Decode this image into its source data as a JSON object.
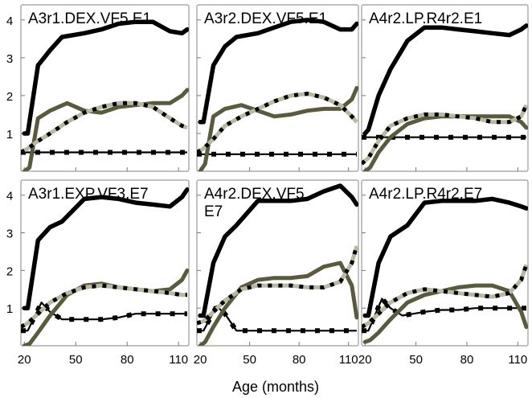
{
  "figure": {
    "xlabel": "Age (months)"
  },
  "chart_data": {
    "type": "line",
    "xlabel": "Age (months)",
    "xlim": [
      18,
      116
    ],
    "ylim": [
      0,
      4.4
    ],
    "xticks": [
      20,
      50,
      80,
      110
    ],
    "yticks": [
      1,
      2,
      3,
      4
    ],
    "grid": false,
    "series_styles": [
      {
        "key": "black_thick",
        "color": "#000000",
        "dash": "none"
      },
      {
        "key": "gray_dashed",
        "color": "#b8b9a0",
        "dash": "alternating-black"
      },
      {
        "key": "olive",
        "color": "#5a5a3c",
        "dash": "none"
      },
      {
        "key": "black_thin_markers",
        "color": "#000000",
        "dash": "square-markers"
      }
    ],
    "panels": [
      {
        "title": "A3r1.DEX.VF5.E1",
        "series": [
          {
            "style": "black_thick",
            "x": [
              20,
              22,
              28,
              35,
              42,
              55,
              65,
              75,
              85,
              95,
              105,
              112,
              115
            ],
            "y": [
              1.0,
              1.0,
              2.8,
              3.2,
              3.55,
              3.65,
              3.75,
              3.9,
              3.95,
              3.95,
              3.7,
              3.65,
              3.75
            ]
          },
          {
            "style": "gray_dashed",
            "x": [
              18,
              22,
              28,
              35,
              45,
              55,
              65,
              75,
              85,
              95,
              105,
              112,
              115
            ],
            "y": [
              0.5,
              0.6,
              0.8,
              1.0,
              1.3,
              1.55,
              1.7,
              1.8,
              1.8,
              1.7,
              1.4,
              1.2,
              1.15
            ]
          },
          {
            "style": "olive",
            "x": [
              20,
              23,
              28,
              35,
              45,
              55,
              65,
              75,
              85,
              95,
              105,
              112,
              115
            ],
            "y": [
              0.0,
              0.1,
              1.4,
              1.6,
              1.8,
              1.6,
              1.55,
              1.7,
              1.75,
              1.8,
              1.8,
              2.0,
              2.15
            ]
          },
          {
            "style": "black_thin_markers",
            "x": [
              18,
              25,
              35,
              45,
              55,
              65,
              75,
              85,
              95,
              105,
              115
            ],
            "y": [
              0.5,
              0.5,
              0.5,
              0.5,
              0.5,
              0.5,
              0.5,
              0.5,
              0.5,
              0.5,
              0.5
            ]
          }
        ]
      },
      {
        "title": "A3r2.DEX.VF5.E1",
        "series": [
          {
            "style": "black_thick",
            "x": [
              20,
              22,
              28,
              35,
              42,
              55,
              65,
              75,
              85,
              95,
              105,
              112,
              115
            ],
            "y": [
              1.3,
              1.3,
              2.8,
              3.3,
              3.55,
              3.65,
              3.8,
              3.95,
              4.0,
              3.95,
              3.75,
              3.75,
              3.9
            ]
          },
          {
            "style": "gray_dashed",
            "x": [
              18,
              22,
              28,
              35,
              45,
              55,
              65,
              75,
              85,
              95,
              105,
              112,
              115
            ],
            "y": [
              0.5,
              0.6,
              0.85,
              1.2,
              1.45,
              1.65,
              1.85,
              2.0,
              2.05,
              1.95,
              1.75,
              1.45,
              1.3
            ]
          },
          {
            "style": "olive",
            "x": [
              20,
              23,
              28,
              35,
              45,
              55,
              65,
              75,
              85,
              95,
              105,
              112,
              115
            ],
            "y": [
              0.0,
              0.2,
              1.45,
              1.65,
              1.75,
              1.6,
              1.45,
              1.5,
              1.6,
              1.65,
              1.65,
              1.9,
              2.2
            ]
          },
          {
            "style": "black_thin_markers",
            "x": [
              18,
              25,
              35,
              45,
              55,
              65,
              75,
              85,
              95,
              105,
              115
            ],
            "y": [
              0.45,
              0.45,
              0.45,
              0.45,
              0.45,
              0.45,
              0.45,
              0.45,
              0.45,
              0.45,
              0.45
            ]
          }
        ]
      },
      {
        "title": "A4r2.LP.R4r2.E1",
        "series": [
          {
            "style": "black_thick",
            "x": [
              20,
              22,
              28,
              35,
              45,
              55,
              65,
              75,
              85,
              95,
              105,
              112,
              115
            ],
            "y": [
              1.0,
              1.1,
              2.0,
              2.7,
              3.45,
              3.8,
              3.8,
              3.75,
              3.7,
              3.65,
              3.6,
              3.75,
              3.85
            ]
          },
          {
            "style": "gray_dashed",
            "x": [
              18,
              22,
              28,
              35,
              45,
              55,
              65,
              75,
              85,
              95,
              105,
              112,
              115
            ],
            "y": [
              0.2,
              0.35,
              0.8,
              1.2,
              1.4,
              1.5,
              1.5,
              1.45,
              1.4,
              1.3,
              1.3,
              1.45,
              1.75
            ]
          },
          {
            "style": "olive",
            "x": [
              20,
              23,
              28,
              35,
              45,
              55,
              65,
              75,
              85,
              95,
              105,
              112,
              115
            ],
            "y": [
              0.0,
              0.1,
              0.5,
              0.9,
              1.25,
              1.4,
              1.45,
              1.45,
              1.45,
              1.45,
              1.45,
              1.3,
              1.15
            ]
          },
          {
            "style": "black_thin_markers",
            "x": [
              18,
              25,
              35,
              45,
              55,
              65,
              75,
              85,
              95,
              105,
              115
            ],
            "y": [
              0.9,
              0.9,
              0.9,
              0.9,
              0.9,
              0.9,
              0.9,
              0.9,
              0.9,
              0.9,
              0.9
            ]
          }
        ]
      },
      {
        "title": "A3r1.EXP.VF3.E7",
        "series": [
          {
            "style": "black_thick",
            "x": [
              20,
              22,
              28,
              35,
              42,
              55,
              65,
              75,
              85,
              95,
              105,
              112,
              115
            ],
            "y": [
              1.0,
              1.0,
              2.8,
              3.15,
              3.3,
              3.9,
              3.95,
              3.9,
              3.8,
              3.75,
              3.7,
              3.95,
              4.15
            ]
          },
          {
            "style": "gray_dashed",
            "x": [
              18,
              22,
              28,
              35,
              45,
              55,
              65,
              75,
              85,
              95,
              105,
              112,
              115
            ],
            "y": [
              0.5,
              0.6,
              0.85,
              1.15,
              1.4,
              1.55,
              1.6,
              1.55,
              1.5,
              1.45,
              1.4,
              1.35,
              1.35
            ]
          },
          {
            "style": "olive",
            "x": [
              20,
              23,
              28,
              35,
              45,
              55,
              65,
              75,
              85,
              95,
              105,
              112,
              115
            ],
            "y": [
              0.0,
              0.05,
              0.35,
              0.8,
              1.35,
              1.6,
              1.65,
              1.55,
              1.5,
              1.45,
              1.5,
              1.75,
              2.0
            ]
          },
          {
            "style": "black_thin_markers",
            "x": [
              18,
              22,
              30,
              35,
              42,
              55,
              65,
              75,
              85,
              95,
              105,
              115
            ],
            "y": [
              0.4,
              0.4,
              1.15,
              0.9,
              0.7,
              0.7,
              0.7,
              0.75,
              0.85,
              0.85,
              0.85,
              0.85
            ]
          }
        ]
      },
      {
        "title": "A4r2.DEX.VF5.",
        "title2": "E7",
        "series": [
          {
            "style": "black_thick",
            "x": [
              20,
              22,
              28,
              35,
              42,
              55,
              65,
              75,
              85,
              95,
              105,
              112,
              115
            ],
            "y": [
              0.8,
              0.8,
              2.2,
              2.9,
              3.2,
              3.85,
              3.85,
              3.85,
              3.9,
              4.1,
              4.25,
              3.95,
              3.75
            ]
          },
          {
            "style": "gray_dashed",
            "x": [
              18,
              22,
              28,
              35,
              45,
              55,
              65,
              75,
              85,
              95,
              105,
              112,
              115
            ],
            "y": [
              0.6,
              0.65,
              0.9,
              1.2,
              1.5,
              1.6,
              1.6,
              1.6,
              1.55,
              1.55,
              1.7,
              2.2,
              2.65
            ]
          },
          {
            "style": "olive",
            "x": [
              20,
              23,
              28,
              35,
              45,
              55,
              65,
              75,
              85,
              95,
              105,
              112,
              115
            ],
            "y": [
              0.0,
              0.1,
              0.5,
              1.0,
              1.55,
              1.75,
              1.8,
              1.8,
              1.85,
              2.1,
              2.2,
              1.6,
              0.75
            ]
          },
          {
            "style": "black_thin_markers",
            "x": [
              18,
              22,
              30,
              35,
              42,
              55,
              65,
              75,
              85,
              95,
              105,
              115
            ],
            "y": [
              0.4,
              0.4,
              1.05,
              0.85,
              0.4,
              0.4,
              0.4,
              0.4,
              0.4,
              0.4,
              0.4,
              0.4
            ]
          }
        ]
      },
      {
        "title": "A4r2.LP.R4r2.E7",
        "series": [
          {
            "style": "black_thick",
            "x": [
              20,
              22,
              28,
              35,
              45,
              55,
              65,
              75,
              85,
              95,
              105,
              112,
              115
            ],
            "y": [
              0.8,
              0.8,
              2.2,
              2.9,
              3.2,
              3.8,
              3.85,
              3.85,
              3.85,
              3.9,
              3.8,
              3.7,
              3.65
            ]
          },
          {
            "style": "gray_dashed",
            "x": [
              18,
              22,
              28,
              35,
              45,
              55,
              65,
              75,
              85,
              95,
              105,
              112,
              115
            ],
            "y": [
              0.5,
              0.6,
              0.85,
              1.15,
              1.4,
              1.5,
              1.45,
              1.4,
              1.35,
              1.3,
              1.4,
              1.75,
              2.15
            ]
          },
          {
            "style": "olive",
            "x": [
              20,
              23,
              28,
              35,
              45,
              55,
              65,
              75,
              85,
              95,
              105,
              112,
              115
            ],
            "y": [
              0.1,
              0.15,
              0.35,
              0.7,
              1.15,
              1.35,
              1.45,
              1.55,
              1.6,
              1.6,
              1.45,
              0.9,
              0.5
            ]
          },
          {
            "style": "black_thin_markers",
            "x": [
              18,
              22,
              30,
              35,
              42,
              55,
              65,
              75,
              85,
              95,
              105,
              115
            ],
            "y": [
              0.4,
              0.4,
              1.25,
              1.0,
              0.8,
              0.9,
              0.95,
              0.95,
              1.0,
              1.0,
              1.0,
              1.0
            ]
          }
        ]
      }
    ]
  }
}
